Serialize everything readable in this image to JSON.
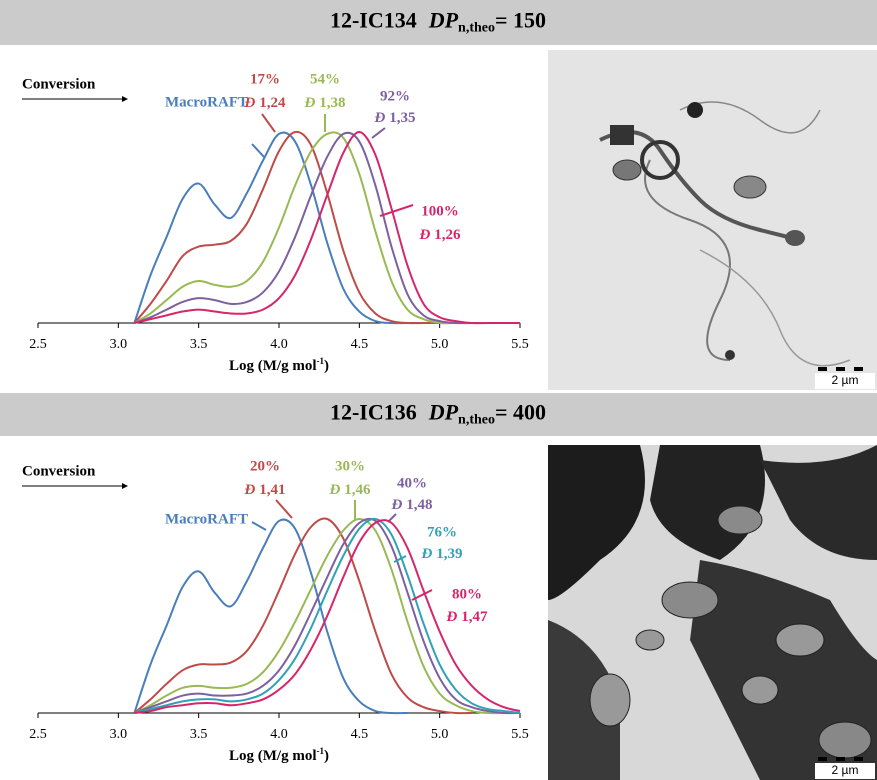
{
  "panels": [
    {
      "header": {
        "sample": "12-IC134",
        "symbol": "DP",
        "subscript": "n,theo",
        "value": "= 150"
      },
      "image": {
        "scale_bar": "2 µm"
      }
    },
    {
      "header": {
        "sample": "12-IC136",
        "symbol": "DP",
        "subscript": "n,theo",
        "value": "= 400"
      },
      "image": {
        "scale_bar": "2 µm"
      }
    }
  ],
  "chart_data": [
    {
      "type": "line",
      "annotation": "Conversion",
      "x_label": "Log (M/g mol",
      "x_label_sup": "-1",
      "x_label_end": ")",
      "dispersity_symbol": "Đ",
      "xlim": [
        2.5,
        5.5
      ],
      "xticks": [
        2.5,
        {
          "value": 3,
          "label": "3.0"
        },
        3.5,
        {
          "value": 4,
          "label": "4.0"
        },
        4.5,
        {
          "value": 5,
          "label": "5.0"
        },
        5.5
      ],
      "ylim": [
        0,
        1
      ],
      "x": [
        3.1,
        3.2,
        3.3,
        3.4,
        3.5,
        3.6,
        3.7,
        3.8,
        3.9,
        4.0,
        4.1,
        4.2,
        4.3,
        4.4,
        4.5,
        4.6,
        4.7,
        4.8,
        4.9,
        5.0,
        5.1,
        5.2,
        5.3,
        5.4,
        5.5
      ],
      "series": [
        {
          "name": "MacroRAFT",
          "color": "#4a7ebb",
          "values": [
            0,
            0.25,
            0.45,
            0.65,
            0.73,
            0.62,
            0.55,
            0.68,
            0.85,
            0.99,
            0.95,
            0.72,
            0.42,
            0.18,
            0.06,
            0.01,
            0,
            0,
            0,
            0,
            0,
            0,
            0,
            0,
            0
          ]
        },
        {
          "name": "17%",
          "dispersity": "1,24",
          "color": "#be4b48",
          "values": [
            0,
            0.1,
            0.22,
            0.35,
            0.4,
            0.41,
            0.43,
            0.52,
            0.7,
            0.9,
            1.0,
            0.93,
            0.68,
            0.38,
            0.16,
            0.05,
            0.01,
            0,
            0,
            0,
            0,
            0,
            0,
            0,
            0
          ]
        },
        {
          "name": "54%",
          "dispersity": "1,38",
          "color": "#98b954",
          "values": [
            0,
            0.05,
            0.12,
            0.19,
            0.22,
            0.2,
            0.19,
            0.22,
            0.32,
            0.5,
            0.72,
            0.9,
            0.99,
            0.97,
            0.78,
            0.48,
            0.22,
            0.07,
            0.02,
            0,
            0,
            0,
            0,
            0,
            0
          ]
        },
        {
          "name": "92%",
          "dispersity": "1,35",
          "color": "#7d60a0",
          "values": [
            0,
            0.03,
            0.07,
            0.11,
            0.13,
            0.12,
            0.1,
            0.11,
            0.16,
            0.27,
            0.45,
            0.67,
            0.87,
            0.99,
            0.95,
            0.72,
            0.4,
            0.15,
            0.04,
            0.01,
            0,
            0,
            0,
            0,
            0
          ]
        },
        {
          "name": "100%",
          "dispersity": "1,26",
          "color": "#d6266b",
          "values": [
            0,
            0.02,
            0.04,
            0.06,
            0.07,
            0.06,
            0.05,
            0.05,
            0.07,
            0.13,
            0.25,
            0.44,
            0.67,
            0.89,
            1.0,
            0.88,
            0.6,
            0.3,
            0.1,
            0.03,
            0.01,
            0,
            0,
            0,
            0
          ]
        }
      ]
    },
    {
      "type": "line",
      "annotation": "Conversion",
      "x_label": "Log (M/g mol",
      "x_label_sup": "-1",
      "x_label_end": ")",
      "dispersity_symbol": "Đ",
      "xlim": [
        2.5,
        5.5
      ],
      "xticks": [
        2.5,
        {
          "value": 3,
          "label": "3.0"
        },
        3.5,
        {
          "value": 4,
          "label": "4.0"
        },
        4.5,
        {
          "value": 5,
          "label": "5.0"
        },
        5.5
      ],
      "ylim": [
        0,
        1
      ],
      "x": [
        3.1,
        3.2,
        3.3,
        3.4,
        3.5,
        3.6,
        3.7,
        3.8,
        3.9,
        4.0,
        4.1,
        4.2,
        4.3,
        4.4,
        4.5,
        4.6,
        4.7,
        4.8,
        4.9,
        5.0,
        5.1,
        5.2,
        5.3,
        5.4,
        5.5
      ],
      "series": [
        {
          "name": "MacroRAFT",
          "color": "#4a7ebb",
          "values": [
            0,
            0.25,
            0.45,
            0.65,
            0.73,
            0.62,
            0.55,
            0.68,
            0.85,
            0.99,
            0.95,
            0.72,
            0.42,
            0.18,
            0.06,
            0.01,
            0,
            0,
            null,
            null,
            null,
            null,
            null,
            null,
            null
          ]
        },
        {
          "name": "20%",
          "dispersity": "1,41",
          "color": "#be4b48",
          "values": [
            0,
            0.07,
            0.15,
            0.22,
            0.25,
            0.25,
            0.26,
            0.32,
            0.45,
            0.63,
            0.82,
            0.96,
            1.0,
            0.9,
            0.68,
            0.42,
            0.2,
            0.08,
            0.03,
            0.01,
            0,
            0,
            null,
            null,
            null
          ]
        },
        {
          "name": "30%",
          "dispersity": "1,46",
          "color": "#98b954",
          "values": [
            0,
            0.04,
            0.09,
            0.13,
            0.14,
            0.13,
            0.13,
            0.15,
            0.21,
            0.32,
            0.47,
            0.64,
            0.81,
            0.94,
            1.0,
            0.94,
            0.74,
            0.47,
            0.24,
            0.1,
            0.04,
            0.01,
            0,
            0,
            0
          ]
        },
        {
          "name": "40%",
          "dispersity": "1,48",
          "color": "#7d60a0",
          "values": [
            0,
            0.03,
            0.06,
            0.09,
            0.1,
            0.09,
            0.09,
            0.1,
            0.14,
            0.22,
            0.35,
            0.52,
            0.7,
            0.87,
            0.98,
            0.99,
            0.86,
            0.62,
            0.37,
            0.18,
            0.07,
            0.03,
            0.01,
            0,
            0
          ]
        },
        {
          "name": "76%",
          "dispersity": "1,39",
          "color": "#31a2b5",
          "values": [
            0,
            0.02,
            0.04,
            0.06,
            0.07,
            0.07,
            0.06,
            0.07,
            0.1,
            0.17,
            0.28,
            0.44,
            0.63,
            0.81,
            0.95,
            1.0,
            0.92,
            0.71,
            0.46,
            0.25,
            0.12,
            0.05,
            0.02,
            0.01,
            0
          ]
        },
        {
          "name": "80%",
          "dispersity": "1,47",
          "color": "#d6266b",
          "values": [
            0,
            0.01,
            0.03,
            0.04,
            0.05,
            0.05,
            0.04,
            0.05,
            0.07,
            0.12,
            0.2,
            0.33,
            0.5,
            0.7,
            0.88,
            0.98,
            0.98,
            0.85,
            0.63,
            0.42,
            0.25,
            0.14,
            0.07,
            0.03,
            0.01
          ]
        }
      ]
    }
  ]
}
